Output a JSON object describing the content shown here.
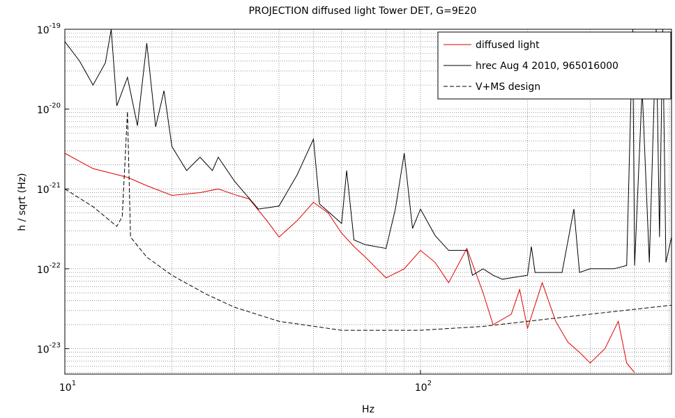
{
  "chart_data": {
    "type": "line",
    "title": "PROJECTION diffused light Tower DET, G=9E20",
    "xlabel": "Hz",
    "ylabel": "h / sqrt (Hz)",
    "xscale": "log",
    "yscale": "log",
    "grid": "major-minor",
    "legend": "upper right",
    "xlim": [
      10,
      508
    ],
    "ylim": [
      4.8e-24,
      1e-19
    ],
    "xticks": [
      {
        "value": 10,
        "label": "10",
        "exp": "1"
      },
      {
        "value": 100,
        "label": "10",
        "exp": "2"
      }
    ],
    "yticks": [
      {
        "value": 1e-23,
        "label": "10",
        "exp": "-23"
      },
      {
        "value": 1e-22,
        "label": "10",
        "exp": "-22"
      },
      {
        "value": 1e-21,
        "label": "10",
        "exp": "-21"
      },
      {
        "value": 1e-20,
        "label": "10",
        "exp": "-20"
      },
      {
        "value": 1e-19,
        "label": "10",
        "exp": "-19"
      }
    ],
    "series": [
      {
        "name": "diffused light",
        "color": "#e00000",
        "dash": "solid",
        "x": [
          10,
          12,
          15,
          17,
          20,
          24,
          27,
          30,
          33,
          37,
          40,
          45,
          50,
          55,
          60,
          65,
          70,
          80,
          90,
          100,
          110,
          120,
          135,
          150,
          160,
          180,
          190,
          200,
          220,
          240,
          260,
          280,
          300,
          330,
          360,
          380,
          400
        ],
        "values": [
          2.8e-21,
          1.8e-21,
          1.4e-21,
          1.1e-21,
          8.3e-22,
          9e-22,
          1e-21,
          8.5e-22,
          7.5e-22,
          4e-22,
          2.5e-22,
          4e-22,
          6.8e-22,
          5e-22,
          2.8e-22,
          1.9e-22,
          1.4e-22,
          7.7e-23,
          1e-22,
          1.7e-22,
          1.2e-22,
          6.7e-23,
          1.8e-22,
          5e-23,
          2e-23,
          2.7e-23,
          5.5e-23,
          1.8e-23,
          6.7e-23,
          2.2e-23,
          1.2e-23,
          9e-24,
          6.6e-24,
          1e-23,
          2.2e-23,
          6.6e-24,
          5e-24
        ]
      },
      {
        "name": "hrec Aug 4 2010, 965016000",
        "color": "#000000",
        "dash": "solid",
        "x": [
          10,
          11,
          12,
          13,
          13.5,
          14,
          15,
          16,
          17,
          18,
          19,
          20,
          22,
          24,
          26,
          27,
          30,
          35,
          40,
          45,
          50,
          52,
          60,
          62,
          65,
          70,
          80,
          85,
          90,
          95,
          100,
          110,
          120,
          135,
          140,
          150,
          160,
          170,
          200,
          205,
          210,
          250,
          270,
          280,
          300,
          350,
          380,
          395,
          400,
          420,
          440,
          460,
          470,
          480,
          490,
          508
        ],
        "values": [
          7e-20,
          4e-20,
          2e-20,
          3.8e-20,
          1e-19,
          1.1e-20,
          2.5e-20,
          6.2e-21,
          6.7e-20,
          6e-21,
          1.7e-20,
          3.4e-21,
          1.7e-21,
          2.5e-21,
          1.7e-21,
          2.5e-21,
          1.25e-21,
          5.6e-22,
          6.1e-22,
          1.5e-21,
          4.2e-21,
          6.5e-22,
          3.7e-22,
          1.7e-21,
          2.3e-22,
          2e-22,
          1.8e-22,
          5.6e-22,
          2.8e-21,
          3.2e-22,
          5.6e-22,
          2.6e-22,
          1.7e-22,
          1.7e-22,
          8.3e-23,
          1e-22,
          8.3e-23,
          7.4e-23,
          8.3e-23,
          1.9e-22,
          9e-23,
          9e-23,
          5.6e-22,
          9e-23,
          1e-22,
          1e-22,
          1.1e-22,
          1e-19,
          1.1e-22,
          1.8e-20,
          1.2e-22,
          1e-19,
          2.5e-22,
          1e-19,
          1.2e-22,
          2.5e-22
        ]
      },
      {
        "name": "V+MS design",
        "color": "#000000",
        "dash": "dashed",
        "x": [
          10,
          12,
          14,
          14.5,
          15,
          15.3,
          17,
          20,
          25,
          30,
          40,
          60,
          100,
          150,
          200,
          300,
          508
        ],
        "values": [
          1e-21,
          6e-22,
          3.4e-22,
          4.5e-22,
          9.3e-21,
          2.5e-22,
          1.4e-22,
          8.3e-23,
          4.8e-23,
          3.3e-23,
          2.2e-23,
          1.7e-23,
          1.7e-23,
          1.9e-23,
          2.2e-23,
          2.7e-23,
          3.5e-23
        ]
      }
    ]
  }
}
